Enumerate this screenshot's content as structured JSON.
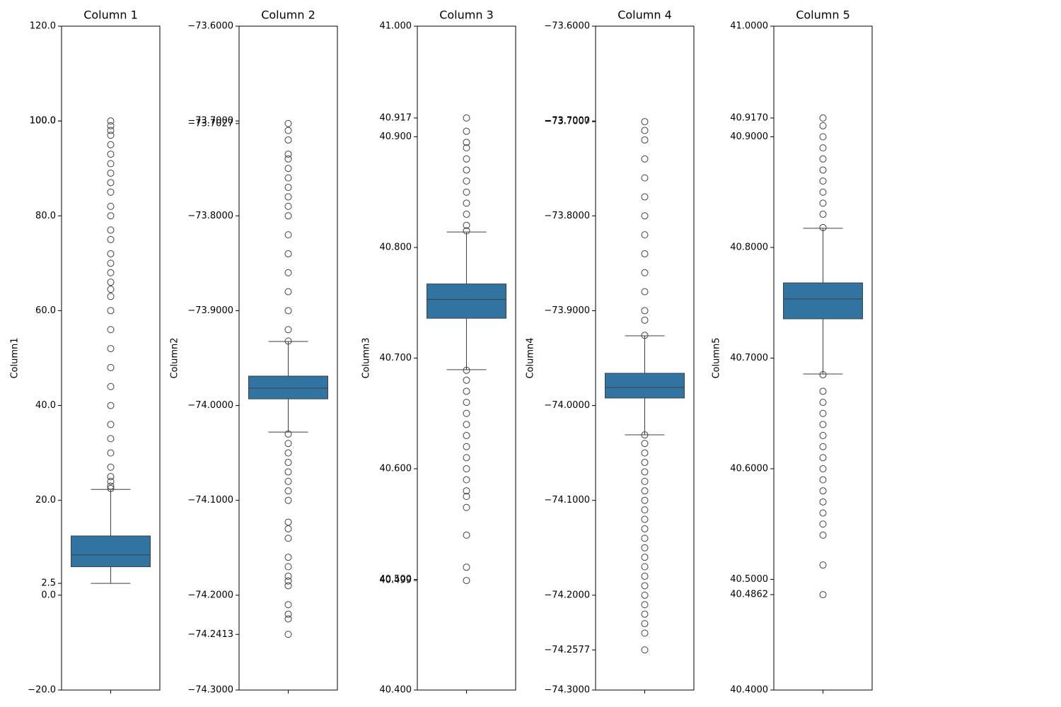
{
  "chart_data": [
    {
      "type": "box",
      "title": "Column 1",
      "ylabel": "Column1",
      "color": "#3274a1",
      "ylim": [
        -20,
        120
      ],
      "yticks": [
        {
          "value": -20,
          "label": "−20.0"
        },
        {
          "value": 0,
          "label": "0.0"
        },
        2.5,
        {
          "value": 20,
          "label": "20.0"
        },
        {
          "value": 40,
          "label": "40.0"
        },
        {
          "value": 60,
          "label": "60.0"
        },
        {
          "value": 80,
          "label": "80.0"
        },
        {
          "value": 100,
          "label": "100.0"
        },
        {
          "value": 100,
          "label": "100.0"
        },
        {
          "value": 120,
          "label": "120.0"
        }
      ],
      "box": {
        "min": 2.5,
        "q1": 6,
        "median": 8.5,
        "q3": 12.5,
        "max": 22.3
      },
      "outliers": [
        22.5,
        23,
        24,
        25,
        27,
        30,
        33,
        36,
        40,
        44,
        48,
        52,
        56,
        60,
        63,
        64.5,
        66,
        68,
        70,
        72,
        75,
        77,
        80,
        82,
        85,
        87,
        89,
        91,
        93,
        95,
        97,
        98,
        99,
        100
      ]
    },
    {
      "type": "box",
      "title": "Column 2",
      "ylabel": "Column2",
      "color": "#3274a1",
      "ylim": [
        -74.3,
        -73.6
      ],
      "yticks": [
        {
          "value": -74.3,
          "label": "−74.3000"
        },
        {
          "value": -74.2413,
          "label": "−74.2413"
        },
        {
          "value": -74.2,
          "label": "−74.2000"
        },
        {
          "value": -74.1,
          "label": "−74.1000"
        },
        {
          "value": -74.0,
          "label": "−74.0000"
        },
        {
          "value": -73.9,
          "label": "−73.9000"
        },
        {
          "value": -73.8,
          "label": "−73.8000"
        },
        {
          "value": -73.7027,
          "label": "−73.7027"
        },
        {
          "value": -73.7,
          "label": "−73.7000"
        },
        {
          "value": -73.6,
          "label": "−73.6000"
        }
      ],
      "box": {
        "min": -74.028,
        "q1": -73.993,
        "median": -73.9817,
        "q3": -73.969,
        "max": -73.9325
      },
      "outliers": [
        -73.932,
        -73.92,
        -73.9,
        -73.88,
        -73.86,
        -73.84,
        -73.82,
        -73.8,
        -73.79,
        -73.78,
        -73.77,
        -73.76,
        -73.75,
        -73.74,
        -73.735,
        -73.72,
        -73.71,
        -73.7027,
        -74.03,
        -74.04,
        -74.05,
        -74.06,
        -74.07,
        -74.08,
        -74.09,
        -74.1,
        -74.123,
        -74.13,
        -74.14,
        -74.16,
        -74.17,
        -74.18,
        -74.185,
        -74.19,
        -74.21,
        -74.22,
        -74.225,
        -74.2413
      ]
    },
    {
      "type": "box",
      "title": "Column 3",
      "ylabel": "Column3",
      "color": "#3274a1",
      "ylim": [
        40.4,
        41.0
      ],
      "yticks": [
        {
          "value": 40.4,
          "label": "40.400"
        },
        40.499,
        {
          "value": 40.5,
          "label": "40.500"
        },
        {
          "value": 40.6,
          "label": "40.600"
        },
        {
          "value": 40.7,
          "label": "40.700"
        },
        {
          "value": 40.8,
          "label": "40.800"
        },
        {
          "value": 40.9,
          "label": "40.900"
        },
        40.917,
        {
          "value": 41.0,
          "label": "41.000"
        }
      ],
      "box": {
        "min": 40.6895,
        "q1": 40.736,
        "median": 40.753,
        "q3": 40.767,
        "max": 40.814
      },
      "outliers": [
        40.815,
        40.82,
        40.83,
        40.84,
        40.85,
        40.86,
        40.87,
        40.88,
        40.89,
        40.895,
        40.905,
        40.917,
        40.689,
        40.68,
        40.67,
        40.66,
        40.65,
        40.64,
        40.63,
        40.62,
        40.61,
        40.6,
        40.59,
        40.58,
        40.575,
        40.565,
        40.54,
        40.511,
        40.499
      ]
    },
    {
      "type": "box",
      "title": "Column 4",
      "ylabel": "Column4",
      "color": "#3274a1",
      "ylim": [
        -74.3,
        -73.6
      ],
      "yticks": [
        {
          "value": -74.3,
          "label": "−74.3000"
        },
        {
          "value": -74.2577,
          "label": "−74.2577"
        },
        {
          "value": -74.2,
          "label": "−74.2000"
        },
        {
          "value": -74.1,
          "label": "−74.1000"
        },
        {
          "value": -74.0,
          "label": "−74.0000"
        },
        {
          "value": -73.9,
          "label": "−73.9000"
        },
        {
          "value": -73.8,
          "label": "−73.8000"
        },
        {
          "value": -73.7007,
          "label": "−73.7007"
        },
        {
          "value": -73.7,
          "label": "−73.7000"
        },
        {
          "value": -73.6,
          "label": "−73.6000"
        }
      ],
      "box": {
        "min": -74.0309,
        "q1": -73.9921,
        "median": -73.981,
        "q3": -73.966,
        "max": -73.9265
      },
      "outliers": [
        -73.926,
        -73.91,
        -73.9,
        -73.88,
        -73.86,
        -73.84,
        -73.82,
        -73.8,
        -73.78,
        -73.76,
        -73.74,
        -73.72,
        -73.71,
        -73.7007,
        -74.031,
        -74.04,
        -74.05,
        -74.06,
        -74.07,
        -74.08,
        -74.09,
        -74.1,
        -74.11,
        -74.12,
        -74.13,
        -74.14,
        -74.15,
        -74.16,
        -74.17,
        -74.18,
        -74.19,
        -74.2,
        -74.21,
        -74.22,
        -74.23,
        -74.24,
        -74.2577
      ]
    },
    {
      "type": "box",
      "title": "Column 5",
      "ylabel": "Column5",
      "color": "#3274a1",
      "ylim": [
        40.4,
        41.0
      ],
      "yticks": [
        {
          "value": 40.4,
          "label": "40.4000"
        },
        40.4862,
        {
          "value": 40.5,
          "label": "40.5000"
        },
        {
          "value": 40.6,
          "label": "40.6000"
        },
        {
          "value": 40.7,
          "label": "40.7000"
        },
        {
          "value": 40.8,
          "label": "40.8000"
        },
        {
          "value": 40.9,
          "label": "40.9000"
        },
        {
          "value": 40.917,
          "label": "40.9170"
        },
        {
          "value": 41.0,
          "label": "41.0000"
        }
      ],
      "box": {
        "min": 40.6856,
        "q1": 40.7355,
        "median": 40.7534,
        "q3": 40.768,
        "max": 40.8173
      },
      "outliers": [
        40.818,
        40.83,
        40.84,
        40.85,
        40.86,
        40.87,
        40.88,
        40.89,
        40.9,
        40.91,
        40.917,
        40.685,
        40.67,
        40.66,
        40.65,
        40.64,
        40.63,
        40.62,
        40.61,
        40.6,
        40.59,
        40.58,
        40.57,
        40.56,
        40.55,
        40.54,
        40.513,
        40.4862
      ]
    }
  ]
}
